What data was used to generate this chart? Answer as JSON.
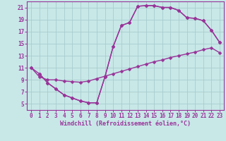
{
  "background_color": "#c8e8e8",
  "line_color": "#993399",
  "grid_color": "#aacccc",
  "xlabel": "Windchill (Refroidissement éolien,°C)",
  "xlim": [
    -0.5,
    23.5
  ],
  "ylim": [
    4,
    22
  ],
  "yticks": [
    5,
    7,
    9,
    11,
    13,
    15,
    17,
    19,
    21
  ],
  "xticks": [
    0,
    1,
    2,
    3,
    4,
    5,
    6,
    7,
    8,
    9,
    10,
    11,
    12,
    13,
    14,
    15,
    16,
    17,
    18,
    19,
    20,
    21,
    22,
    23
  ],
  "marker_size": 2.5,
  "linewidth": 1.0,
  "line1_x": [
    0,
    1,
    2,
    3,
    4,
    5,
    6,
    7,
    8,
    9,
    10,
    11,
    12,
    13,
    14,
    15,
    16,
    17,
    18,
    19,
    20,
    21,
    22,
    23
  ],
  "line1_y": [
    11.0,
    10.0,
    8.5,
    7.5,
    6.5,
    6.0,
    5.5,
    5.2,
    5.2,
    9.5,
    14.5,
    18.0,
    18.5,
    21.2,
    21.3,
    21.3,
    21.0,
    21.0,
    20.5,
    19.3,
    19.2,
    18.8,
    17.2,
    15.2
  ],
  "line2_x": [
    1,
    2,
    3,
    4,
    5,
    6,
    7,
    8,
    9,
    10,
    11,
    12,
    13,
    14,
    15,
    16,
    17,
    18,
    19,
    20,
    21,
    22,
    23
  ],
  "line2_y": [
    10.0,
    8.5,
    7.5,
    6.5,
    6.0,
    5.5,
    5.2,
    5.2,
    9.5,
    14.5,
    18.0,
    18.5,
    21.2,
    21.3,
    21.3,
    21.0,
    21.0,
    20.5,
    19.3,
    19.2,
    18.8,
    17.2,
    15.2
  ],
  "line3_x": [
    0,
    1,
    2,
    3,
    4,
    5,
    6,
    7,
    8,
    9,
    10,
    11,
    12,
    13,
    14,
    15,
    16,
    17,
    18,
    19,
    20,
    21,
    22,
    23
  ],
  "line3_y": [
    11.0,
    9.5,
    9.0,
    9.0,
    8.8,
    8.7,
    8.6,
    8.8,
    9.2,
    9.6,
    10.0,
    10.4,
    10.8,
    11.2,
    11.6,
    12.0,
    12.3,
    12.7,
    13.0,
    13.3,
    13.6,
    14.0,
    14.3,
    13.5
  ]
}
